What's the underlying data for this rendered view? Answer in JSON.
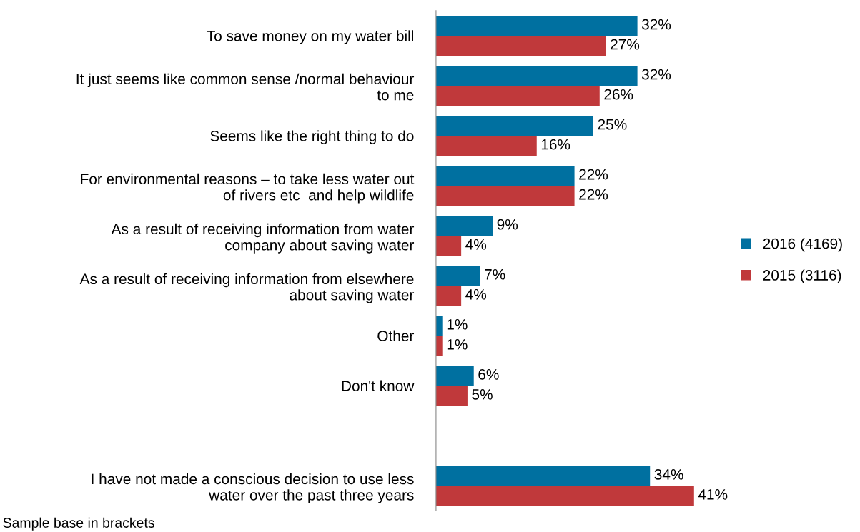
{
  "chart_data": {
    "type": "bar",
    "orientation": "horizontal",
    "categories": [
      "To save money on my water bill",
      "It just seems like common sense /normal behaviour\nto me",
      "Seems like the right thing to do",
      "For environmental reasons – to take less water out\nof rivers etc  and help wildlife",
      "As a result of receiving information from water\ncompany about saving water",
      "As a result of receiving information from elsewhere\nabout saving water",
      "Other",
      "Don't know",
      null,
      "I have not made a conscious decision to use less\nwater over the past three years"
    ],
    "series": [
      {
        "name": "2016 (4169)",
        "color": "#0070a0",
        "values": [
          32,
          32,
          25,
          22,
          9,
          7,
          1,
          6,
          null,
          34
        ],
        "value_labels": [
          "32%",
          "32%",
          "25%",
          "22%",
          "9%",
          "7%",
          "1%",
          "6%",
          null,
          "34%"
        ]
      },
      {
        "name": "2015 (3116)",
        "color": "#c0393b",
        "values": [
          27,
          26,
          16,
          22,
          4,
          4,
          1,
          5,
          null,
          41
        ],
        "value_labels": [
          "27%",
          "26%",
          "16%",
          "22%",
          "4%",
          "4%",
          "1%",
          "5%",
          null,
          "41%"
        ]
      }
    ],
    "legend": "right",
    "grid": false,
    "annotations": [
      "Sample base in brackets"
    ]
  }
}
